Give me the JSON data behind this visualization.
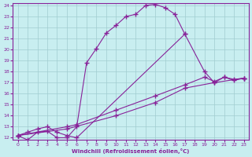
{
  "xlabel": "Windchill (Refroidissement éolien,°C)",
  "xlim": [
    -0.5,
    23.5
  ],
  "ylim": [
    11.8,
    24.2
  ],
  "xticks": [
    0,
    1,
    2,
    3,
    4,
    5,
    6,
    7,
    8,
    9,
    10,
    11,
    12,
    13,
    14,
    15,
    16,
    17,
    18,
    19,
    20,
    21,
    22,
    23
  ],
  "yticks": [
    12,
    13,
    14,
    15,
    16,
    17,
    18,
    19,
    20,
    21,
    22,
    23,
    24
  ],
  "bg_color": "#c8eef0",
  "line_color": "#882299",
  "grid_color": "#a0ccd0",
  "curve1_x": [
    0,
    1,
    2,
    3,
    4,
    5,
    6,
    7,
    8,
    9,
    10,
    11,
    12,
    13,
    14,
    15,
    16,
    17
  ],
  "curve1_y": [
    12.2,
    11.8,
    12.5,
    12.6,
    12.0,
    12.0,
    13.0,
    18.8,
    20.1,
    21.5,
    22.2,
    23.0,
    23.2,
    24.0,
    24.1,
    23.8,
    23.2,
    21.4
  ],
  "curve2_x": [
    0,
    1,
    2,
    3,
    4,
    5,
    6,
    17,
    19,
    20,
    21,
    22,
    23
  ],
  "curve2_y": [
    12.2,
    12.5,
    12.8,
    13.0,
    12.5,
    12.2,
    12.0,
    21.4,
    18.0,
    17.0,
    17.5,
    17.2,
    17.4
  ],
  "curve3_x": [
    0,
    5,
    6,
    10,
    14,
    17,
    19,
    20,
    21,
    22,
    23
  ],
  "curve3_y": [
    12.2,
    13.0,
    13.2,
    14.5,
    15.8,
    16.8,
    17.5,
    17.1,
    17.5,
    17.3,
    17.4
  ],
  "curve4_x": [
    0,
    5,
    10,
    14,
    17,
    20,
    23
  ],
  "curve4_y": [
    12.2,
    12.8,
    14.0,
    15.2,
    16.5,
    17.0,
    17.4
  ]
}
